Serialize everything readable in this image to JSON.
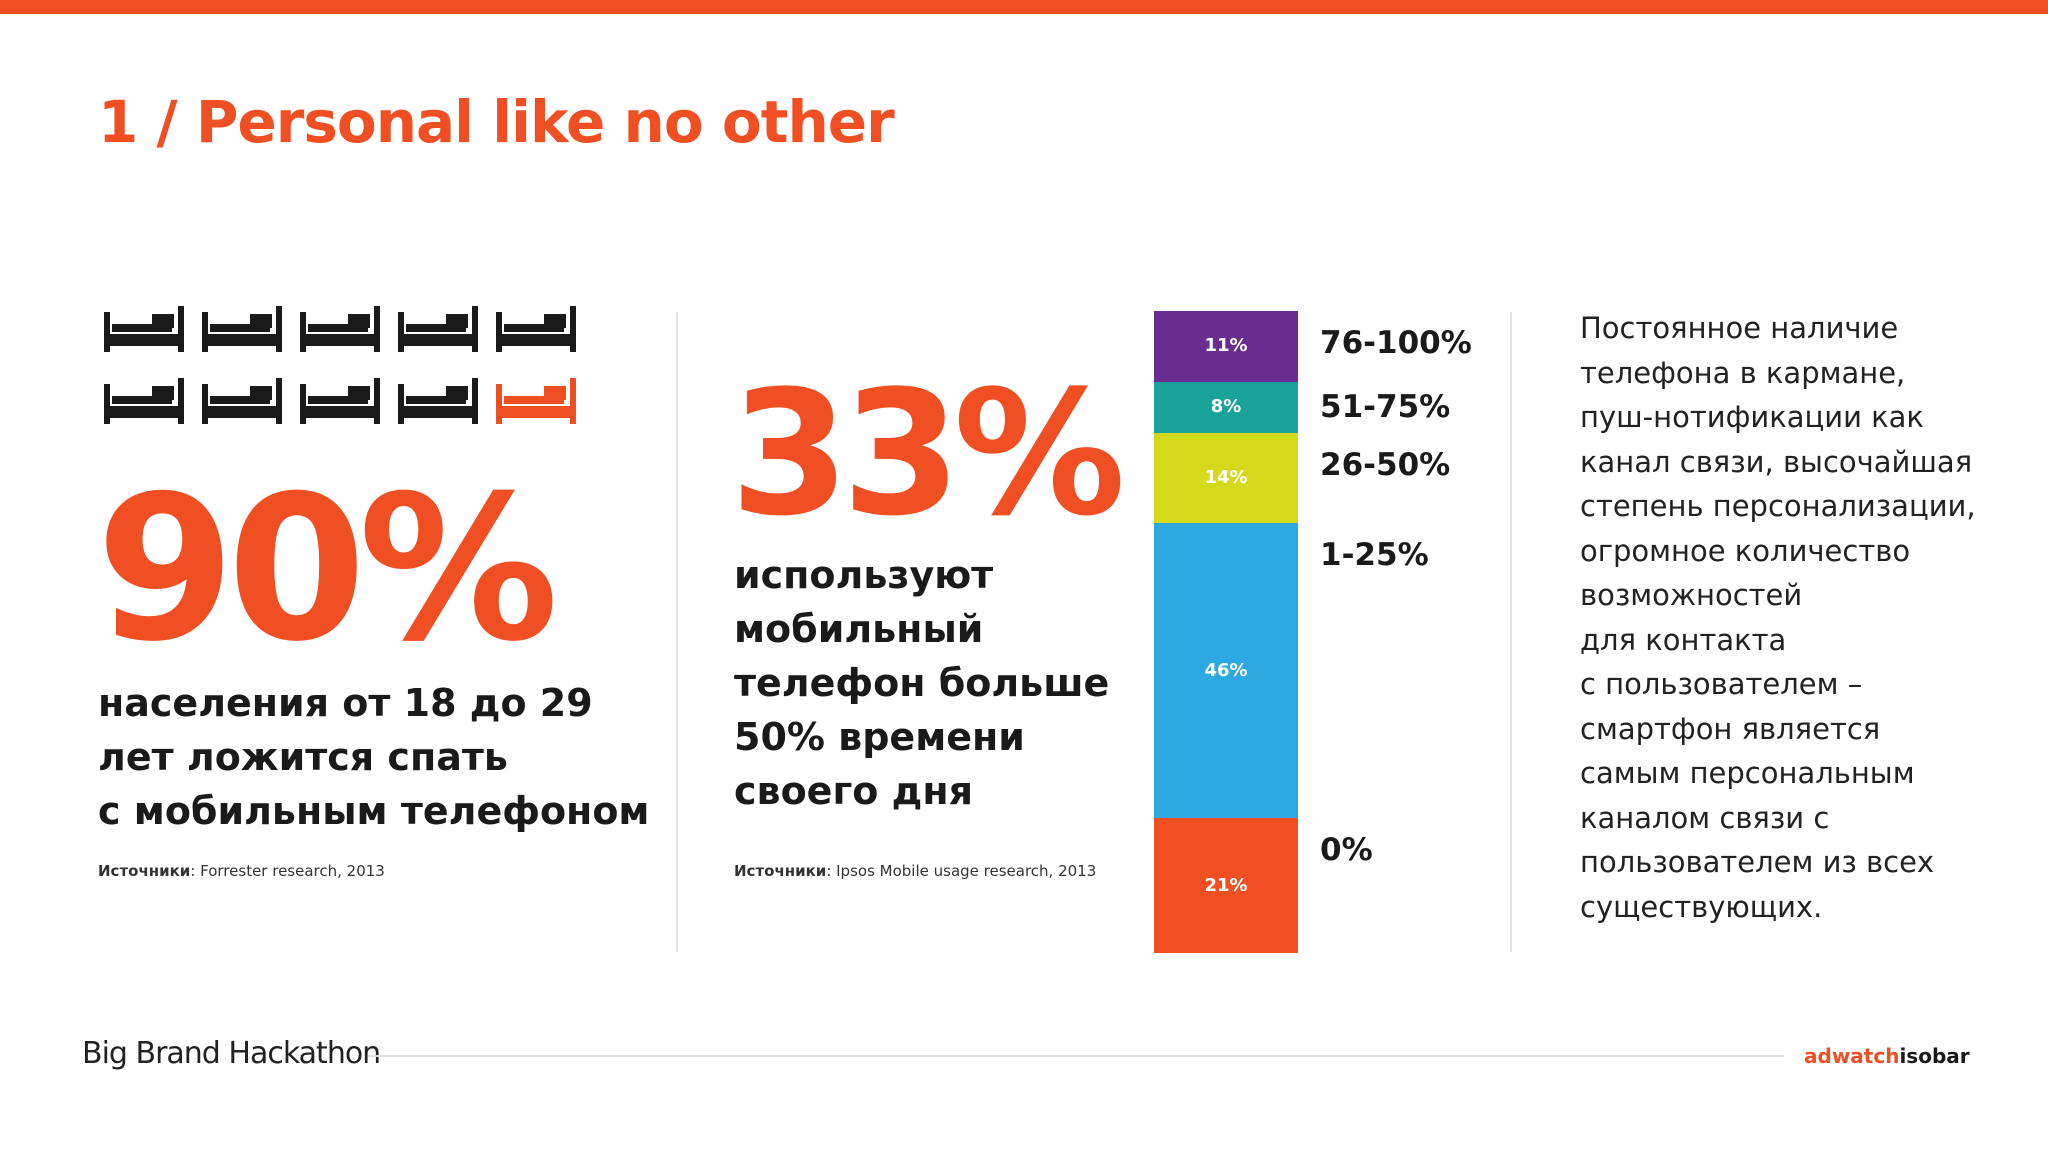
{
  "title": "1 / Personal like no other",
  "colors": {
    "accent": "#f04e23",
    "dark": "#1a1a1a",
    "purple": "#6a2c91",
    "teal": "#1aa39a",
    "lime": "#d4d91b",
    "blue": "#2ea8e0",
    "orange": "#f04e23"
  },
  "left": {
    "icon": "bed-icon",
    "beds_total": 10,
    "beds_highlighted": 1,
    "percent": "90%",
    "text_lines": [
      "населения от 18 до 29",
      "лет ложится спать",
      "с мобильным телефоном"
    ],
    "source_label": "Источники",
    "source_text": ": Forrester research, 2013"
  },
  "middle": {
    "percent": "33%",
    "text_lines": [
      "используют",
      "мобильный",
      "телефон больше",
      "50% времени",
      "своего дня"
    ],
    "source_label": "Источники",
    "source_text": ": Ipsos Mobile usage research, 2013"
  },
  "chart_data": {
    "type": "bar",
    "stacked": true,
    "categories": [
      "76-100%",
      "51-75%",
      "26-50%",
      "1-25%",
      "0%"
    ],
    "values": [
      11,
      8,
      14,
      46,
      21
    ],
    "value_labels": [
      "11%",
      "8%",
      "14%",
      "46%",
      "21%"
    ],
    "segment_colors": [
      "#6a2c91",
      "#1aa39a",
      "#d4d91b",
      "#2ea8e0",
      "#f04e23"
    ],
    "title": "",
    "xlabel": "",
    "ylabel": ""
  },
  "right": {
    "lines": [
      "Постоянное наличие",
      "телефона в кармане,",
      "пуш-нотификации как",
      "канал связи, высочайшая",
      "степень персонализации,",
      "огромное количество",
      "возможностей",
      "для контакта",
      "с пользователем –",
      "смартфон является",
      "самым персональным",
      "каналом связи с",
      "пользователем из всех",
      "существующих."
    ]
  },
  "footer": {
    "event_name": "Big Brand Hackathon",
    "brand_part1": "adwatch",
    "brand_part2": "isobar"
  }
}
